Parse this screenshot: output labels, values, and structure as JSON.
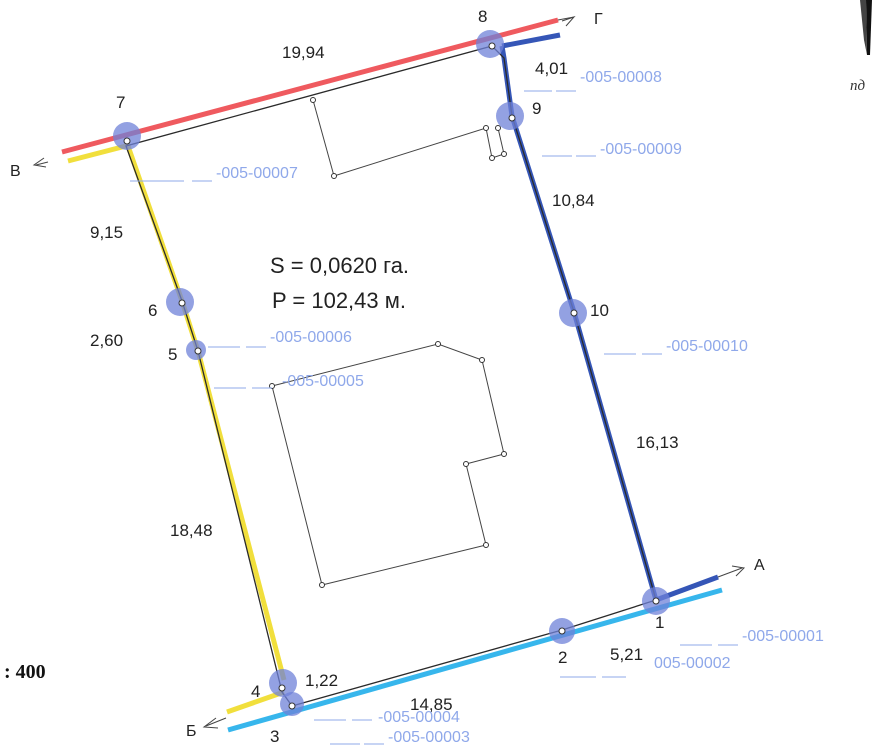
{
  "colors": {
    "red_border": "#ef5a5f",
    "blue_border": "#3556b7",
    "yellow_border": "#f1df3c",
    "cyan_border": "#37b6ec",
    "point_marker": "#6f82d8",
    "code_text": "#8fa8ea"
  },
  "area_label": "S = 0,0620 га.",
  "perimeter_label": "P = 102,43 м.",
  "scale_label": ": 400",
  "north_fragment": "пд",
  "directions": {
    "a": "А",
    "b": "Б",
    "v": "В",
    "g": "Г"
  },
  "points": [
    {
      "id": "1",
      "label": "1"
    },
    {
      "id": "2",
      "label": "2"
    },
    {
      "id": "3",
      "label": "3"
    },
    {
      "id": "4",
      "label": "4"
    },
    {
      "id": "5",
      "label": "5"
    },
    {
      "id": "6",
      "label": "6"
    },
    {
      "id": "7",
      "label": "7"
    },
    {
      "id": "8",
      "label": "8"
    },
    {
      "id": "9",
      "label": "9"
    },
    {
      "id": "10",
      "label": "10"
    }
  ],
  "distances": {
    "d_7_8": "19,94",
    "d_8_9": "4,01",
    "d_9_10": "10,84",
    "d_10_1": "16,13",
    "d_1_2": "5,21",
    "d_2_3": "14,85",
    "d_3_4": "1,22",
    "d_4_5": "18,48",
    "d_5_6": "2,60",
    "d_6_7": "9,15"
  },
  "codes": {
    "c1": "-005-00001",
    "c2": "005-00002",
    "c3": "-005-00003",
    "c4": "-005-00004",
    "c5": "-005-00005",
    "c6": "-005-00006",
    "c7": "-005-00007",
    "c8": "-005-00008",
    "c9": "-005-00009",
    "c10": "-005-00010"
  }
}
